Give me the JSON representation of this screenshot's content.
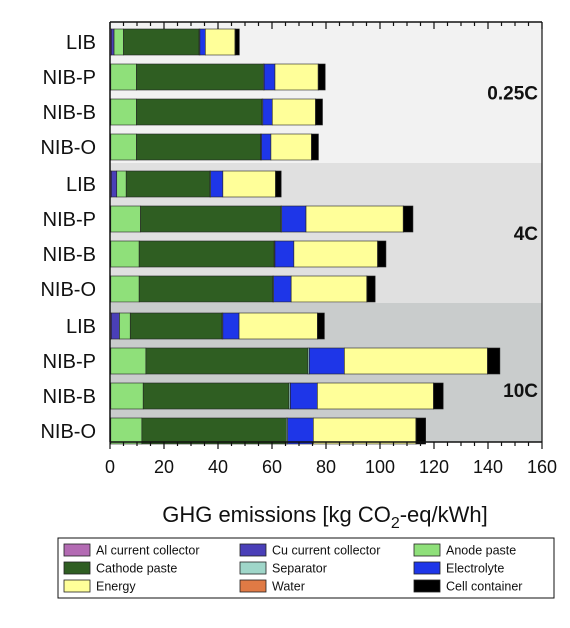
{
  "chart_data": {
    "type": "bar",
    "orientation": "horizontal",
    "stacked": true,
    "xlabel_parts": [
      "GHG emissions [kg CO",
      "2",
      "-eq/kWh]"
    ],
    "xlim": [
      0,
      160
    ],
    "xticks": [
      0,
      20,
      40,
      60,
      80,
      100,
      120,
      140,
      160
    ],
    "legend_placement": "bottom",
    "groups": [
      {
        "label": "0.25C",
        "background": "#f2f2f2",
        "categories": [
          "LIB",
          "NIB-P",
          "NIB-B",
          "NIB-O"
        ]
      },
      {
        "label": "4C",
        "background": "#e0e0e0",
        "categories": [
          "LIB",
          "NIB-P",
          "NIB-B",
          "NIB-O"
        ]
      },
      {
        "label": "10C",
        "background": "#c9cccc",
        "categories": [
          "LIB",
          "NIB-P",
          "NIB-B",
          "NIB-O"
        ]
      }
    ],
    "series": [
      {
        "name": "Al current collector",
        "color": "#b36bb3"
      },
      {
        "name": "Cu current collector",
        "color": "#4a3fb8"
      },
      {
        "name": "Anode paste",
        "color": "#8fe07a"
      },
      {
        "name": "Cathode paste",
        "color": "#2f5e22"
      },
      {
        "name": "Separator",
        "color": "#9fd6c9"
      },
      {
        "name": "Electrolyte",
        "color": "#1e36e8"
      },
      {
        "name": "Energy",
        "color": "#ffff99"
      },
      {
        "name": "Water",
        "color": "#e07a45"
      },
      {
        "name": "Cell container",
        "color": "#000000"
      }
    ],
    "bars": [
      {
        "group": 0,
        "category": "LIB",
        "values": [
          0.5,
          1,
          3.5,
          28,
          0.3,
          2,
          11,
          0.1,
          1.5
        ]
      },
      {
        "group": 0,
        "category": "NIB-P",
        "values": [
          0.3,
          0,
          9.5,
          47,
          0.3,
          4,
          16,
          0.1,
          2.5
        ]
      },
      {
        "group": 0,
        "category": "NIB-B",
        "values": [
          0.3,
          0,
          9.5,
          46.5,
          0.3,
          3.5,
          16,
          0.1,
          2.5
        ]
      },
      {
        "group": 0,
        "category": "NIB-O",
        "values": [
          0.3,
          0,
          9.5,
          46,
          0.3,
          3.5,
          15,
          0.1,
          2.5
        ]
      },
      {
        "group": 1,
        "category": "LIB",
        "values": [
          0.5,
          2,
          3.5,
          31,
          0.3,
          4.5,
          19.5,
          0.1,
          2
        ]
      },
      {
        "group": 1,
        "category": "NIB-P",
        "values": [
          0.3,
          0,
          11,
          52,
          0.3,
          9,
          36,
          0.1,
          3.5
        ]
      },
      {
        "group": 1,
        "category": "NIB-B",
        "values": [
          0.3,
          0,
          10.5,
          50,
          0.3,
          7,
          31,
          0.1,
          3
        ]
      },
      {
        "group": 1,
        "category": "NIB-O",
        "values": [
          0.3,
          0,
          10.5,
          49.5,
          0.3,
          6.5,
          28,
          0.1,
          3
        ]
      },
      {
        "group": 2,
        "category": "LIB",
        "values": [
          0.5,
          3,
          4,
          34,
          0.3,
          6,
          29,
          0.1,
          2.5
        ]
      },
      {
        "group": 2,
        "category": "NIB-P",
        "values": [
          0.3,
          0,
          13,
          60,
          0.5,
          13,
          53,
          0.1,
          4.5
        ]
      },
      {
        "group": 2,
        "category": "NIB-B",
        "values": [
          0.3,
          0,
          12,
          54,
          0.5,
          10,
          43,
          0.1,
          3.5
        ]
      },
      {
        "group": 2,
        "category": "NIB-O",
        "values": [
          0.3,
          0,
          11.5,
          53.5,
          0.5,
          9.5,
          38,
          0.1,
          3.5
        ]
      }
    ]
  }
}
